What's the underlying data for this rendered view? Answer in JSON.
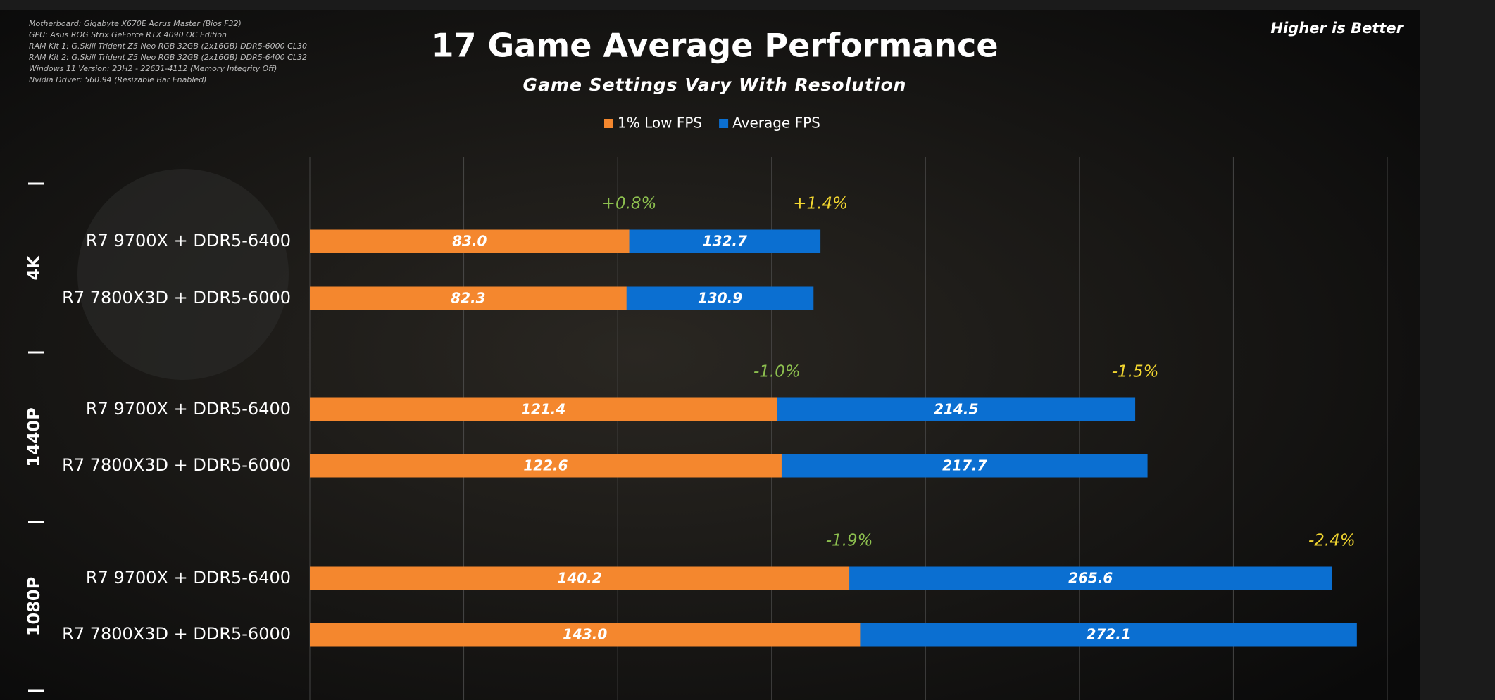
{
  "chart_data": {
    "type": "bar",
    "orientation": "horizontal",
    "title": "17 Game Average Performance",
    "subtitle": "Game Settings Vary With Resolution",
    "note": "Higher is Better",
    "specs": [
      "Motherboard: Gigabyte X670E Aorus Master (Bios F32)",
      "GPU: Asus ROG Strix GeForce RTX 4090 OC Edition",
      "RAM Kit 1: G.Skill Trident Z5 Neo RGB 32GB (2x16GB) DDR5-6000 CL30",
      "RAM Kit 2: G.Skill Trident Z5 Neo RGB 32GB (2x16GB) DDR5-6400 CL32",
      "Windows 11 Version:  23H2 - 22631-4112 (Memory Integrity Off)",
      "Nvidia Driver: 560.94 (Resizable Bar Enabled)"
    ],
    "categories": [
      "R7 9700X + DDR5-6400",
      "R7 7800X3D + DDR5-6000",
      "R7 9700X + DDR5-6400",
      "R7 7800X3D + DDR5-6000",
      "R7 9700X + DDR5-6400",
      "R7 7800X3D + DDR5-6000"
    ],
    "groups": [
      {
        "name": "4K",
        "deltas": [
          "+0.8%",
          "+1.4%"
        ]
      },
      {
        "name": "1440P",
        "deltas": [
          "-1.0%",
          "-1.5%"
        ]
      },
      {
        "name": "1080P",
        "deltas": [
          "-1.9%",
          "-2.4%"
        ]
      }
    ],
    "delta_colors": [
      "#8dc04f",
      "#f2d630"
    ],
    "series": [
      {
        "name": "Average FPS",
        "color": "#0b6fd1",
        "values": [
          132.7,
          130.9,
          214.5,
          217.7,
          265.6,
          272.1
        ],
        "value_labels": [
          "132.7",
          "130.9",
          "214.5",
          "217.7",
          "265.6",
          "272.1"
        ]
      },
      {
        "name": "1% Low FPS",
        "color": "#f4872e",
        "values": [
          83.0,
          82.3,
          121.4,
          122.6,
          140.2,
          143.0
        ],
        "value_labels": [
          "83.0",
          "82.3",
          "121.4",
          "122.6",
          "140.2",
          "143.0"
        ]
      }
    ],
    "xlim": [
      0,
      280
    ],
    "xticks": [
      0,
      40,
      80,
      120,
      160,
      200,
      240,
      280
    ],
    "grid": true
  }
}
